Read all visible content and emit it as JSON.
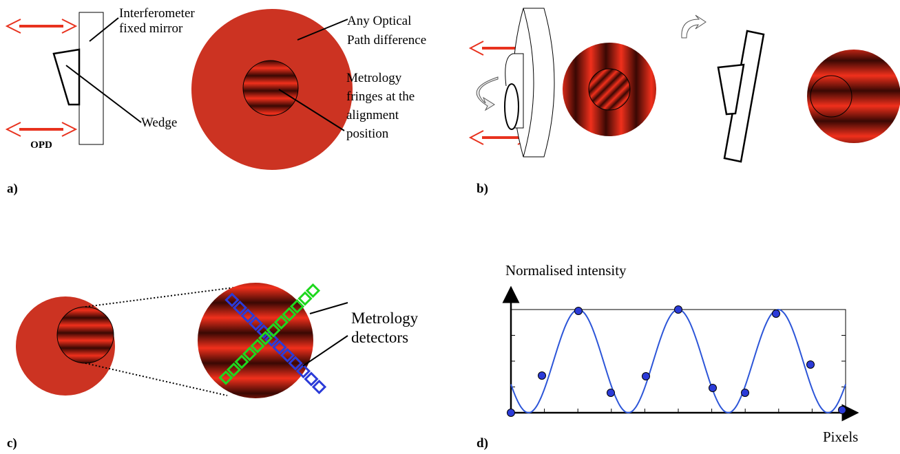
{
  "panel_a": {
    "label": "a)",
    "mirror_label": [
      "Interferometer",
      "fixed mirror"
    ],
    "wedge_label": "Wedge",
    "opd_label": "OPD",
    "path_label": [
      "Any Optical",
      "Path difference"
    ],
    "fringe_label": [
      "Metrology",
      "fringes at the",
      "alignment",
      "position"
    ]
  },
  "panel_b": {
    "label": "b)"
  },
  "panel_c": {
    "label": "c)",
    "detector_label": [
      "Metrology",
      "detectors"
    ]
  },
  "panel_d": {
    "label": "d)",
    "y_axis_label": "Normalised intensity",
    "x_axis_label": "Pixels"
  }
}
